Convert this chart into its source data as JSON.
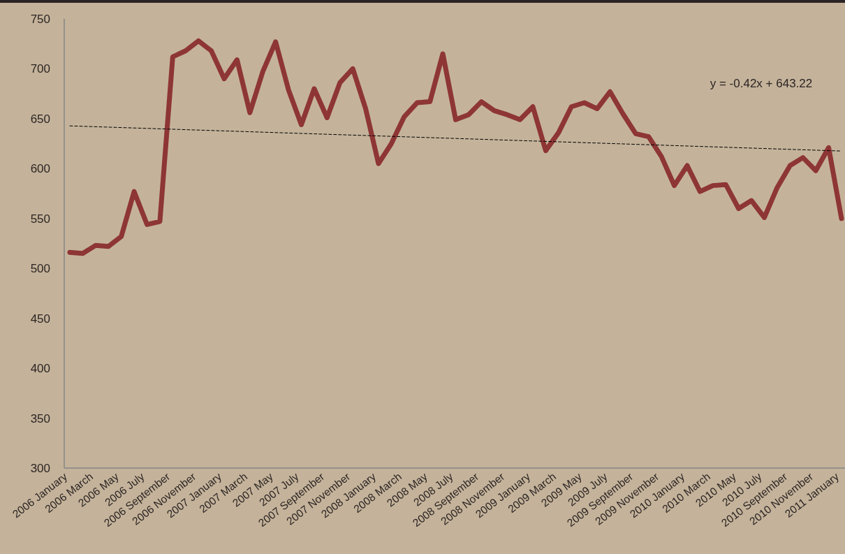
{
  "chart_data": {
    "type": "line",
    "categories": [
      "2006 January",
      null,
      "2006 March",
      null,
      "2006 May",
      null,
      "2006 July",
      null,
      "2006 September",
      null,
      "2006 November",
      null,
      "2007 January",
      null,
      "2007 March",
      null,
      "2007 May",
      null,
      "2007 July",
      null,
      "2007 September",
      null,
      "2007 November",
      null,
      "2008 January",
      null,
      "2008 March",
      null,
      "2008 May",
      null,
      "2008 July",
      null,
      "2008 September",
      null,
      "2008 November",
      null,
      "2009 January",
      null,
      "2009 March",
      null,
      "2009 May",
      null,
      "2009 July",
      null,
      "2009 September",
      null,
      "2009 November",
      null,
      "2010 January",
      null,
      "2010 March",
      null,
      "2010 May",
      null,
      "2010 July",
      null,
      "2010 September",
      null,
      "2010 November",
      null,
      "2011 January"
    ],
    "series": [
      {
        "color": "#8e3535",
        "values": [
          516,
          515,
          523,
          522,
          532,
          577,
          544,
          547,
          712,
          718,
          728,
          718,
          690,
          709,
          656,
          697,
          727,
          679,
          644,
          680,
          651,
          686,
          700,
          660,
          605,
          625,
          652,
          666,
          667,
          715,
          649,
          654,
          667,
          658,
          654,
          649,
          662,
          618,
          636,
          662,
          666,
          660,
          677,
          655,
          635,
          632,
          612,
          583,
          603,
          577,
          583,
          584,
          560,
          568,
          551,
          581,
          603,
          611,
          598,
          621,
          550
        ]
      },
      {
        "type": "line",
        "line_style": "dashed",
        "color": "#000000",
        "x": [
          "2006 January",
          "2011 January"
        ],
        "values": [
          642.8,
          617.6
        ]
      }
    ],
    "ylim": [
      300,
      750
    ],
    "yticks": [
      300,
      350,
      400,
      450,
      500,
      550,
      600,
      650,
      700,
      750
    ],
    "annotations": [
      "y = -0.42x + 643.22"
    ],
    "grid": false,
    "marker": "none",
    "line_style": "solid"
  }
}
